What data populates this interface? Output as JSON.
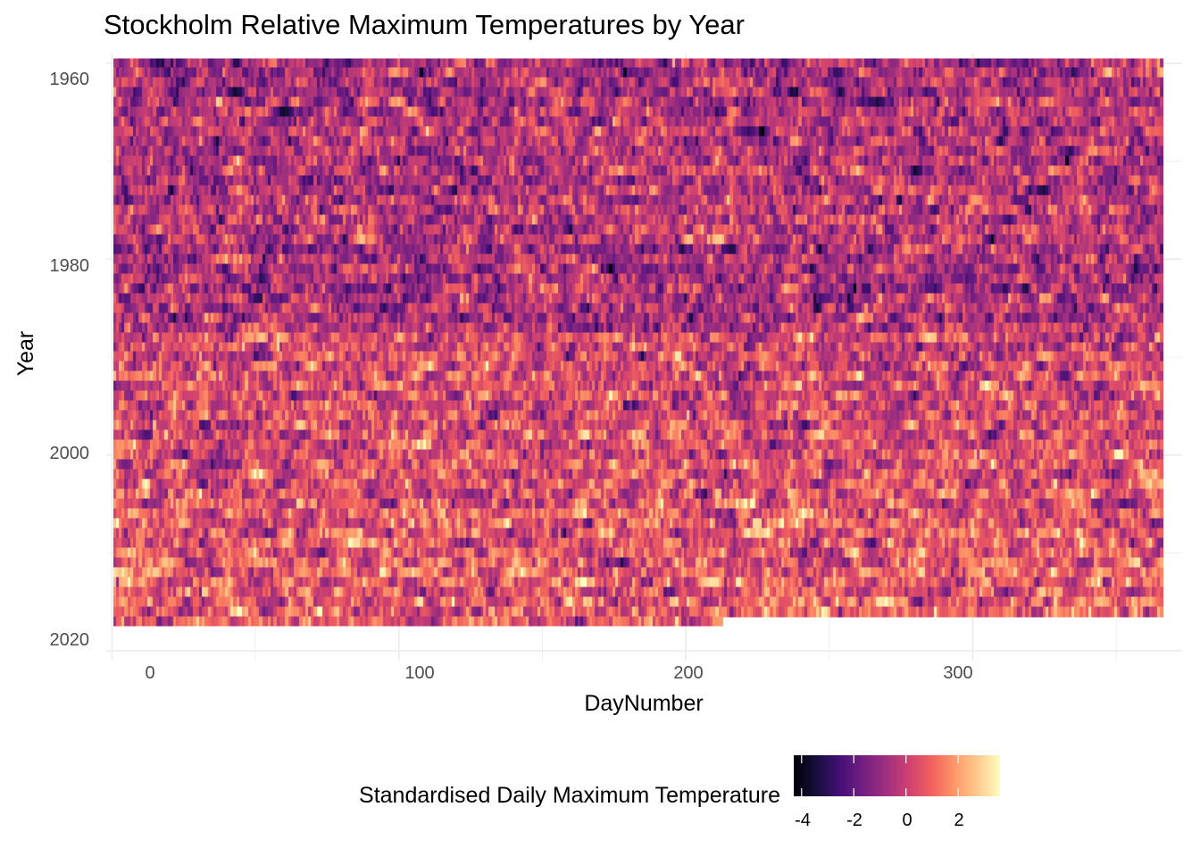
{
  "chart_data": {
    "type": "heatmap",
    "title": "Stockholm Relative Maximum Temperatures by Year",
    "xlabel": "DayNumber",
    "ylabel": "Year",
    "x_ticks": [
      "0",
      "100",
      "200",
      "300"
    ],
    "y_ticks": [
      "1960",
      "1980",
      "2000",
      "2020"
    ],
    "xlim": [
      -2,
      373
    ],
    "ylim": [
      1959,
      2021
    ],
    "y_reversed": true,
    "x_range": [
      1,
      366
    ],
    "years": [
      1960,
      2017
    ],
    "last_year_max_day": 212,
    "grid": "on",
    "color_scale": {
      "name": "magma",
      "range": [
        -4.3,
        3.6
      ],
      "colors": [
        "#000004",
        "#180f3d",
        "#440f76",
        "#721f81",
        "#9e2f7f",
        "#cd4071",
        "#f1605d",
        "#fd9668",
        "#feca8d",
        "#fcfdbf"
      ]
    },
    "legend": {
      "title": "Standardised Daily Maximum Temperature",
      "ticks": [
        "-4",
        "-2",
        "0",
        "2"
      ],
      "tick_values": [
        -4,
        -2,
        0,
        2
      ],
      "position": "bottom"
    }
  }
}
